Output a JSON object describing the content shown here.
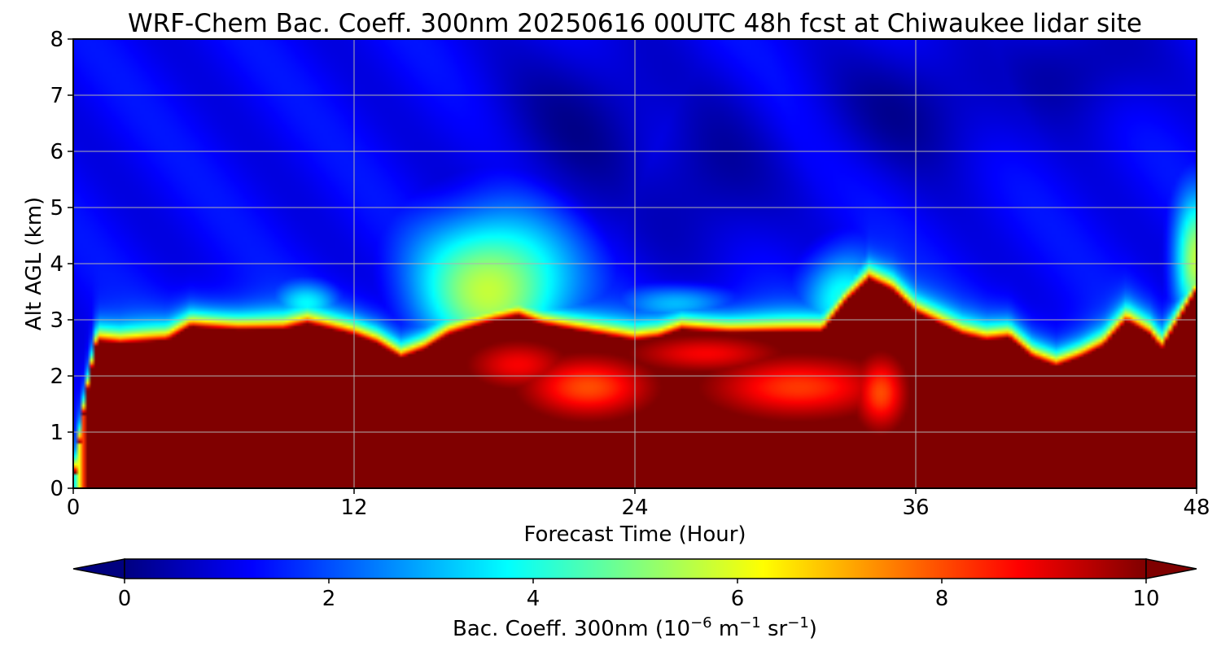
{
  "chart_data": {
    "type": "heatmap",
    "title": "WRF-Chem Bac. Coeff. 300nm  20250616 00UTC 48h fcst at Chiwaukee lidar site",
    "xlabel": "Forecast Time (Hour)",
    "ylabel": "Alt AGL (km)",
    "xlim": [
      0,
      48
    ],
    "ylim": [
      0,
      8
    ],
    "xticks": [
      "0",
      "12",
      "24",
      "36",
      "48"
    ],
    "yticks": [
      "0",
      "1",
      "2",
      "3",
      "4",
      "5",
      "6",
      "7",
      "8"
    ],
    "grid": true,
    "colorscale": "jet",
    "colorbar": {
      "label_main": "Bac. Coeff. 300nm  (10",
      "label_exp1": "−6",
      "label_mid": " m",
      "label_exp2": "−1",
      "label_mid2": " sr",
      "label_exp3": "−1",
      "label_end": ")",
      "range": [
        0,
        10
      ],
      "ticks": [
        "0",
        "2",
        "4",
        "6",
        "8",
        "10"
      ],
      "extend": "both",
      "extend_min_color": "#00007f",
      "extend_max_color": "#7f0000"
    },
    "upper_layer_value": 1.2,
    "layer_top_km": {
      "x": [
        0,
        0.5,
        1,
        2,
        4,
        5,
        7,
        9,
        10,
        12,
        13,
        14,
        15,
        16,
        18,
        19,
        20,
        22,
        24,
        25,
        26,
        28,
        30,
        32,
        33,
        34,
        35,
        36,
        37,
        38,
        39,
        40,
        41,
        42,
        43,
        44,
        45,
        46,
        46.5,
        47,
        48
      ],
      "y": [
        0,
        1.5,
        2.6,
        2.55,
        2.6,
        2.85,
        2.8,
        2.8,
        2.9,
        2.7,
        2.55,
        2.3,
        2.45,
        2.7,
        2.95,
        3.05,
        2.9,
        2.75,
        2.6,
        2.65,
        2.8,
        2.75,
        2.75,
        2.75,
        3.3,
        3.7,
        3.5,
        3.1,
        2.9,
        2.7,
        2.6,
        2.65,
        2.3,
        2.15,
        2.3,
        2.5,
        2.95,
        2.7,
        2.45,
        2.8,
        3.5
      ]
    },
    "plumes": [
      {
        "x": 18,
        "y": 3.6,
        "sx": 3.5,
        "sy": 1.4,
        "value": 5.0
      },
      {
        "x": 33,
        "y": 3.4,
        "sx": 1.8,
        "sy": 0.9,
        "value": 3.5
      },
      {
        "x": 48,
        "y": 4.0,
        "sx": 1.0,
        "sy": 1.2,
        "value": 5.0
      },
      {
        "x": 10,
        "y": 3.3,
        "sx": 1.5,
        "sy": 0.4,
        "value": 2.8
      },
      {
        "x": 26,
        "y": 3.3,
        "sx": 2.5,
        "sy": 0.35,
        "value": 2.6
      }
    ],
    "low_pockets": [
      {
        "x": 22,
        "y": 1.8,
        "sx": 2.5,
        "sy": 0.5,
        "value": 8.0
      },
      {
        "x": 31,
        "y": 1.8,
        "sx": 3.5,
        "sy": 0.5,
        "value": 8.2
      },
      {
        "x": 27,
        "y": 2.4,
        "sx": 3.0,
        "sy": 0.3,
        "value": 8.8
      },
      {
        "x": 34.5,
        "y": 1.7,
        "sx": 1.0,
        "sy": 0.6,
        "value": 8.0
      },
      {
        "x": 19,
        "y": 2.2,
        "sx": 2.0,
        "sy": 0.4,
        "value": 8.8
      }
    ],
    "dark_patches": [
      {
        "x": 22,
        "y": 6.5,
        "sx": 4,
        "sy": 1.5
      },
      {
        "x": 27,
        "y": 5.5,
        "sx": 3,
        "sy": 1.5
      },
      {
        "x": 36,
        "y": 6.8,
        "sx": 4,
        "sy": 1.2
      },
      {
        "x": 43,
        "y": 7.5,
        "sx": 3,
        "sy": 1.0
      }
    ]
  }
}
